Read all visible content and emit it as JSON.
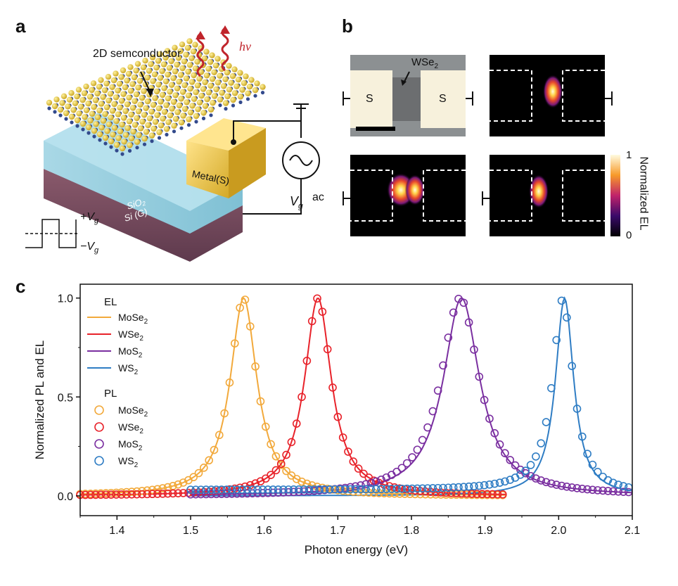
{
  "panel_a": {
    "letter": "a",
    "semiconductor_label": "2D semconductor",
    "hv_label": "hν",
    "metal_label": "Metal(S)",
    "sio2_label": "SiO₂",
    "si_label": "Si (G)",
    "vg_label": "V",
    "vg_sub": "g",
    "ac_label": "ac",
    "plus_vg": "+V",
    "minus_vg": "−V",
    "pm_sub": "g"
  },
  "panel_b": {
    "letter": "b",
    "wse2_label": "WSe",
    "wse2_sub": "2",
    "source_label": "S",
    "colorbar_max": "1",
    "colorbar_min": "0",
    "colorbar_title": "Normalized EL"
  },
  "panel_c": {
    "letter": "c"
  },
  "chart_data": {
    "type": "line",
    "xlabel": "Photon energy (eV)",
    "ylabel": "Normalized PL and EL",
    "xlim": [
      1.35,
      2.1
    ],
    "ylim": [
      -0.1,
      1.07
    ],
    "xticks": [
      "1.4",
      "1.5",
      "1.6",
      "1.7",
      "1.8",
      "1.9",
      "2.0",
      "2.1"
    ],
    "yticks": [
      "0.0",
      "0.5",
      "1.0"
    ],
    "legend_placement": "top-left",
    "legend_el_title": "EL",
    "legend_pl_title": "PL",
    "series": [
      {
        "group": "EL",
        "name": "MoSe",
        "sub": "2",
        "color": "#f2a93b",
        "style": "line",
        "peak": 1.572,
        "width": 0.022,
        "x_range": [
          1.35,
          1.93
        ],
        "baseline": 0.0
      },
      {
        "group": "EL",
        "name": "WSe",
        "sub": "2",
        "color": "#e8222a",
        "style": "line",
        "peak": 1.673,
        "width": 0.022,
        "x_range": [
          1.35,
          1.93
        ],
        "baseline": 0.0
      },
      {
        "group": "EL",
        "name": "MoS",
        "sub": "2",
        "color": "#7a2fa0",
        "style": "line",
        "peak": 1.868,
        "width": 0.03,
        "x_range": [
          1.5,
          2.1
        ],
        "baseline": 0.0
      },
      {
        "group": "EL",
        "name": "WS",
        "sub": "2",
        "color": "#2f7dc4",
        "style": "line",
        "peak": 2.008,
        "width": 0.015,
        "x_range": [
          1.5,
          2.1
        ],
        "baseline": 0.0
      },
      {
        "group": "PL",
        "name": "MoSe",
        "sub": "2",
        "color": "#f2a93b",
        "style": "marker",
        "peak": 1.572,
        "width": 0.022,
        "x_range": [
          1.35,
          1.925
        ],
        "baseline": 0.0
      },
      {
        "group": "PL",
        "name": "WSe",
        "sub": "2",
        "color": "#e8222a",
        "style": "marker",
        "peak": 1.673,
        "width": 0.022,
        "x_range": [
          1.35,
          1.925
        ],
        "baseline": 0.0
      },
      {
        "group": "PL",
        "name": "MoS",
        "sub": "2",
        "color": "#7a2fa0",
        "style": "marker",
        "peak": 1.866,
        "width": 0.032,
        "x_range": [
          1.5,
          2.1
        ],
        "baseline": 0.0
      },
      {
        "group": "PL",
        "name": "WS",
        "sub": "2",
        "color": "#2f7dc4",
        "style": "marker",
        "peak": 2.006,
        "width": 0.017,
        "x_range": [
          1.5,
          2.1
        ],
        "baseline": 0.03
      }
    ]
  }
}
